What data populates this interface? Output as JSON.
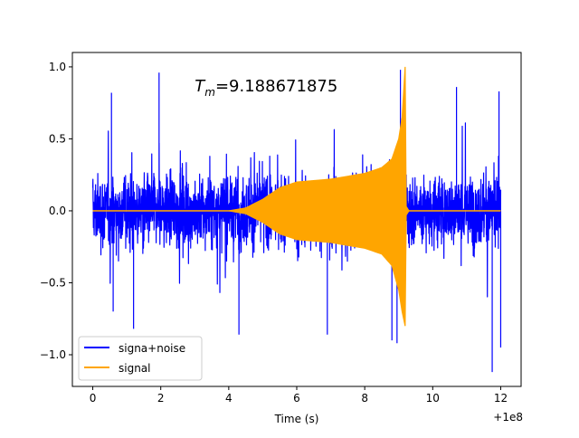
{
  "chart_data": {
    "type": "line",
    "title": "",
    "annotation": {
      "symbol": "T",
      "subscript": "m",
      "value_text": "=9.188671875",
      "x": 3.0,
      "y": 0.83
    },
    "xlabel": "Time (s)",
    "ylabel": "",
    "x_offset_label": "+1e8",
    "xlim": [
      -0.6,
      12.6
    ],
    "ylim": [
      -1.22,
      1.1
    ],
    "x_ticks": [
      0,
      2,
      4,
      6,
      8,
      10,
      12
    ],
    "x_tick_labels": [
      "0",
      "2",
      "4",
      "6",
      "8",
      "10",
      "12"
    ],
    "y_ticks": [
      -1.0,
      -0.5,
      0.0,
      0.5,
      1.0
    ],
    "y_tick_labels": [
      "−1.0",
      "−0.5",
      "0.0",
      "0.5",
      "1.0"
    ],
    "legend": {
      "placement": "lower-left"
    },
    "series": [
      {
        "name": "signa+noise",
        "color": "#0000ff",
        "description_of_band": "dense noise band spanning x 0 to 12",
        "typical_range": [
          -0.45,
          0.45
        ],
        "peaks_max": 0.98,
        "peaks_min": -1.12
      },
      {
        "name": "signal",
        "color": "#ffa500",
        "envelope": {
          "x": [
            0,
            4.0,
            4.5,
            5.0,
            5.5,
            6.0,
            6.5,
            7.0,
            7.5,
            8.0,
            8.5,
            8.8,
            9.0,
            9.1,
            9.188671875,
            9.22,
            9.3,
            12.0
          ],
          "upper": [
            0.0,
            0.0,
            0.02,
            0.08,
            0.16,
            0.2,
            0.21,
            0.22,
            0.24,
            0.26,
            0.3,
            0.36,
            0.5,
            0.65,
            1.0,
            0.03,
            0.0,
            0.0
          ],
          "lower": [
            0.0,
            0.0,
            -0.02,
            -0.08,
            -0.16,
            -0.2,
            -0.21,
            -0.22,
            -0.24,
            -0.26,
            -0.3,
            -0.38,
            -0.55,
            -0.7,
            -0.8,
            -0.03,
            0.0,
            0.0
          ]
        }
      }
    ]
  }
}
